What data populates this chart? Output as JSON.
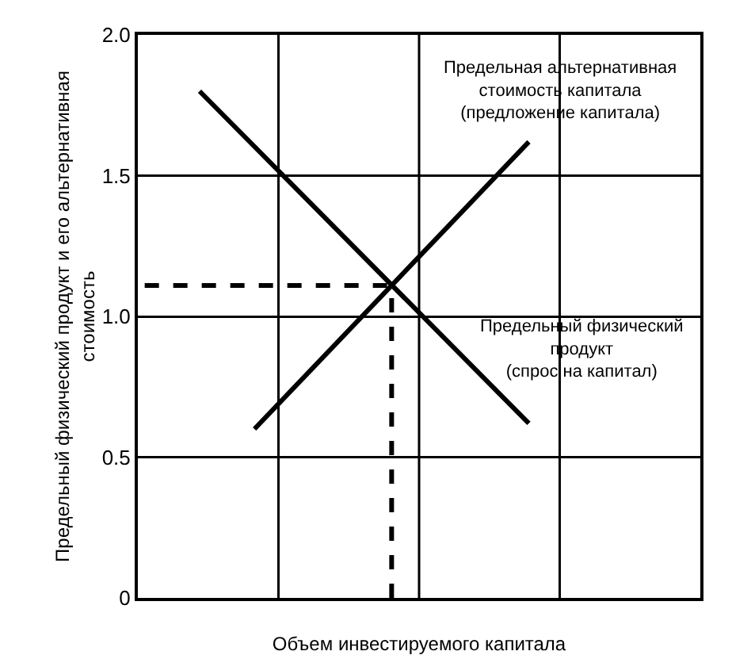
{
  "chart_data": {
    "type": "line",
    "xlabel": "Объем инвестируемого капитала",
    "ylabel": "Предельный физический продукт и его альтернативная\nстоимость",
    "categories": [
      null,
      null,
      null,
      null,
      null,
      null,
      null,
      null,
      null,
      null,
      null,
      null,
      null,
      null,
      null,
      null,
      null,
      null,
      null,
      null,
      null,
      null,
      null,
      null,
      null,
      null,
      null,
      null,
      null,
      null,
      null,
      null,
      null,
      null,
      null,
      null,
      null,
      null,
      null,
      null,
      null
    ],
    "ylim": [
      0,
      2
    ],
    "yticks": [
      {
        "value": 0,
        "label": "0"
      },
      {
        "value": 0.5,
        "label": "0.5"
      },
      {
        "value": 1,
        "label": "1.0"
      },
      {
        "value": 1.5,
        "label": "1.5"
      },
      {
        "value": 2,
        "label": "2.0"
      }
    ],
    "tick_labels": "y",
    "grid": "y",
    "marker": "none",
    "series": [
      {
        "color": "#000000",
        "values": [
          null,
          null,
          null,
          null,
          1.8,
          null,
          null,
          null,
          null,
          null,
          null,
          null,
          null,
          null,
          null,
          null,
          null,
          null,
          null,
          null,
          null,
          null,
          null,
          null,
          null,
          null,
          null,
          null,
          0.62,
          null,
          null,
          null,
          null,
          null,
          null,
          null,
          null,
          null,
          null,
          null,
          null
        ]
      },
      {
        "color": "#000000",
        "values": [
          null,
          null,
          null,
          null,
          null,
          null,
          null,
          null,
          0.6,
          null,
          null,
          null,
          null,
          null,
          null,
          null,
          null,
          null,
          null,
          null,
          null,
          null,
          null,
          null,
          null,
          null,
          null,
          null,
          1.62,
          null,
          null,
          null,
          null,
          null,
          null,
          null,
          null,
          null,
          null,
          null,
          null
        ]
      },
      {
        "color": "#000000",
        "line_style": "dashed",
        "values": [
          1.11,
          null,
          null,
          null,
          null,
          null,
          null,
          null,
          null,
          null,
          null,
          null,
          null,
          null,
          null,
          null,
          null,
          null,
          1.11,
          null,
          null,
          null,
          null,
          null,
          null,
          null,
          null,
          null,
          null,
          null,
          null,
          null,
          null,
          null,
          null,
          null,
          null,
          null,
          null,
          null,
          null
        ]
      }
    ],
    "annotations": [
      "Предельная альтернативная\nстоимость капитала\n(предложение капитала)",
      "Предельный физический\nпродукт\n(спрос на капитал)"
    ]
  }
}
